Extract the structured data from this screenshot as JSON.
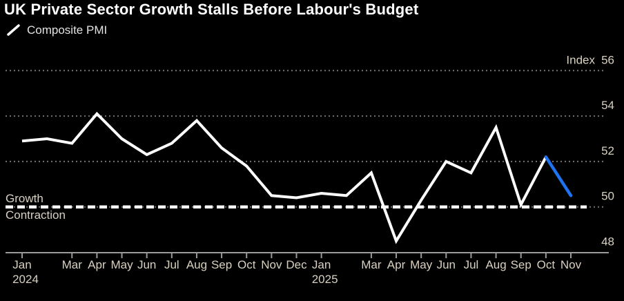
{
  "header": {
    "title": "UK Private Sector Growth Stalls Before Labour's Budget"
  },
  "legend": {
    "items": [
      {
        "label": "Composite PMI",
        "marker": "line-slash-icon",
        "color": "#ffffff"
      }
    ]
  },
  "colors": {
    "background": "#000000",
    "title": "#ffffff",
    "legend_text": "#e3e3e3",
    "axis_label": "#d9d1c1",
    "grid": "#757575",
    "axis": "#9a9a9a",
    "series_line": "#ffffff",
    "forecast_line": "#1e74f0",
    "threshold_line": "#ffffff"
  },
  "chart_data": {
    "type": "line",
    "title": "UK Private Sector Growth Stalls Before Labour's Budget",
    "unit_label": "Index",
    "ylim": [
      48,
      56
    ],
    "y_ticks": [
      56,
      54,
      52,
      50,
      48
    ],
    "grid": "dotted-horizontal",
    "legend_position": "top-left",
    "threshold": {
      "value": 50,
      "above_label": "Growth",
      "below_label": "Contraction"
    },
    "x": [
      "Jan 2024",
      "Feb 2024",
      "Mar 2024",
      "Apr 2024",
      "May 2024",
      "Jun 2024",
      "Jul 2024",
      "Aug 2024",
      "Sep 2024",
      "Oct 2024",
      "Nov 2024",
      "Dec 2024",
      "Jan 2025",
      "Feb 2025",
      "Mar 2025",
      "Apr 2025",
      "May 2025",
      "Jun 2025",
      "Jul 2025",
      "Aug 2025",
      "Sep 2025",
      "Oct 2025",
      "Nov 2025"
    ],
    "x_ticks": [
      {
        "index": 0,
        "label": "Jan",
        "year": "2024"
      },
      {
        "index": 2,
        "label": "Mar"
      },
      {
        "index": 3,
        "label": "Apr"
      },
      {
        "index": 4,
        "label": "May"
      },
      {
        "index": 5,
        "label": "Jun"
      },
      {
        "index": 6,
        "label": "Jul"
      },
      {
        "index": 7,
        "label": "Aug"
      },
      {
        "index": 8,
        "label": "Sep"
      },
      {
        "index": 9,
        "label": "Oct"
      },
      {
        "index": 10,
        "label": "Nov"
      },
      {
        "index": 11,
        "label": "Dec"
      },
      {
        "index": 12,
        "label": "Jan",
        "year": "2025"
      },
      {
        "index": 14,
        "label": "Mar"
      },
      {
        "index": 15,
        "label": "Apr"
      },
      {
        "index": 16,
        "label": "May"
      },
      {
        "index": 17,
        "label": "Jun"
      },
      {
        "index": 18,
        "label": "Jul"
      },
      {
        "index": 19,
        "label": "Aug"
      },
      {
        "index": 20,
        "label": "Sep"
      },
      {
        "index": 21,
        "label": "Oct"
      },
      {
        "index": 22,
        "label": "Nov"
      }
    ],
    "series": [
      {
        "name": "Composite PMI",
        "color": "#ffffff",
        "values": [
          52.9,
          53.0,
          52.8,
          54.1,
          53.0,
          52.3,
          52.8,
          53.8,
          52.6,
          51.8,
          50.5,
          50.4,
          50.6,
          50.5,
          51.5,
          48.5,
          50.3,
          52.0,
          51.5,
          53.5,
          50.1,
          52.2,
          50.5
        ]
      }
    ],
    "forecast_segment": {
      "start_index": 21,
      "end_index": 22,
      "color": "#1e74f0"
    }
  }
}
